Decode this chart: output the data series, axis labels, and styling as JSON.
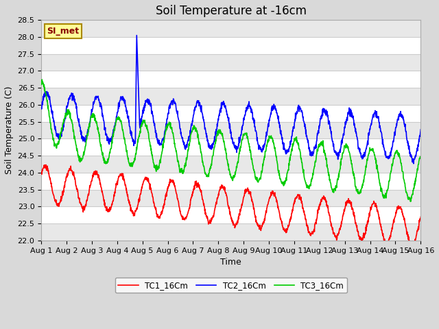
{
  "title": "Soil Temperature at -16cm",
  "xlabel": "Time",
  "ylabel": "Soil Temperature (C)",
  "ylim": [
    22.0,
    28.5
  ],
  "xlim": [
    0,
    15
  ],
  "color_tc1": "#ff0000",
  "color_tc2": "#0000ff",
  "color_tc3": "#00cc00",
  "legend_labels": [
    "TC1_16Cm",
    "TC2_16Cm",
    "TC3_16Cm"
  ],
  "fig_bg_color": "#d9d9d9",
  "plot_bg_color": "#ffffff",
  "annotation_text": "SI_met",
  "annotation_bg": "#ffff99",
  "annotation_border": "#aa8800",
  "annotation_text_color": "#880000",
  "stripe_color": "#e8e8e8",
  "grid_line_color": "#cccccc",
  "title_fontsize": 12,
  "label_fontsize": 9,
  "tick_fontsize": 8,
  "line_width": 1.2,
  "xtick_labels": [
    "Aug 1",
    "Aug 2",
    "Aug 3",
    "Aug 4",
    "Aug 5",
    "Aug 6",
    "Aug 7",
    "Aug 8",
    "Aug 9",
    "Aug 10",
    "Aug 11",
    "Aug 12",
    "Aug 13",
    "Aug 14",
    "Aug 15",
    "Aug 16"
  ],
  "xtick_positions": [
    0,
    1,
    2,
    3,
    4,
    5,
    6,
    7,
    8,
    9,
    10,
    11,
    12,
    13,
    14,
    15
  ],
  "ytick_values": [
    22.0,
    22.5,
    23.0,
    23.5,
    24.0,
    24.5,
    25.0,
    25.5,
    26.0,
    26.5,
    27.0,
    27.5,
    28.0,
    28.5
  ]
}
